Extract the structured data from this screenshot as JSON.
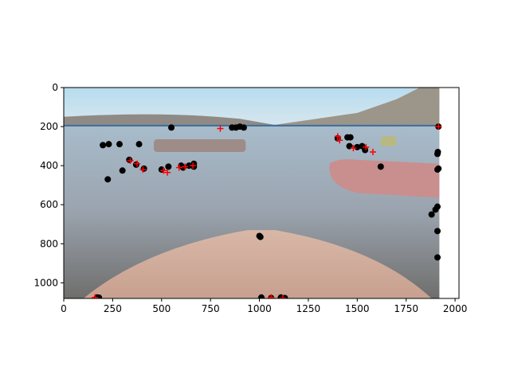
{
  "chart_data": {
    "type": "scatter",
    "title": "",
    "xlabel": "",
    "ylabel": "",
    "xlim": [
      0,
      2020
    ],
    "ylim": [
      1080,
      0
    ],
    "y_inverted": true,
    "grid": false,
    "background": "image",
    "image_extent": {
      "x": [
        0,
        1920
      ],
      "y": [
        1080,
        0
      ]
    },
    "xticks": [
      0,
      250,
      500,
      750,
      1000,
      1250,
      1500,
      1750,
      2000
    ],
    "xtick_labels": [
      "0",
      "250",
      "500",
      "750",
      "1000",
      "1250",
      "1500",
      "1750",
      "2000"
    ],
    "yticks": [
      0,
      200,
      400,
      600,
      800,
      1000
    ],
    "ytick_labels": [
      "0",
      "200",
      "400",
      "600",
      "800",
      "1000"
    ],
    "horizon_line": {
      "y": 195,
      "color": "#3a6e9c"
    },
    "series": [
      {
        "marker": "circle",
        "color": "#000000",
        "points": [
          [
            200,
            295
          ],
          [
            230,
            290
          ],
          [
            285,
            290
          ],
          [
            385,
            290
          ],
          [
            225,
            470
          ],
          [
            300,
            425
          ],
          [
            335,
            370
          ],
          [
            370,
            395
          ],
          [
            410,
            415
          ],
          [
            500,
            420
          ],
          [
            535,
            405
          ],
          [
            550,
            205
          ],
          [
            600,
            400
          ],
          [
            610,
            410
          ],
          [
            640,
            400
          ],
          [
            665,
            405
          ],
          [
            665,
            390
          ],
          [
            860,
            205
          ],
          [
            880,
            205
          ],
          [
            900,
            200
          ],
          [
            920,
            205
          ],
          [
            1000,
            760
          ],
          [
            1005,
            765
          ],
          [
            1010,
            1075
          ],
          [
            1060,
            1078
          ],
          [
            1110,
            1075
          ],
          [
            1130,
            1078
          ],
          [
            1400,
            260
          ],
          [
            1450,
            255
          ],
          [
            1465,
            255
          ],
          [
            1460,
            300
          ],
          [
            1500,
            305
          ],
          [
            1540,
            320
          ],
          [
            1525,
            300
          ],
          [
            1620,
            405
          ],
          [
            1880,
            650
          ],
          [
            1910,
            610
          ],
          [
            1900,
            625
          ],
          [
            1915,
            200
          ],
          [
            1910,
            340
          ],
          [
            1912,
            330
          ],
          [
            1910,
            420
          ],
          [
            1915,
            415
          ],
          [
            1910,
            735
          ],
          [
            1910,
            870
          ],
          [
            170,
            1075
          ],
          [
            180,
            1076
          ]
        ]
      },
      {
        "marker": "plus",
        "color": "#ff0000",
        "points": [
          [
            160,
            1075
          ],
          [
            340,
            375
          ],
          [
            375,
            390
          ],
          [
            405,
            420
          ],
          [
            510,
            425
          ],
          [
            530,
            435
          ],
          [
            590,
            410
          ],
          [
            620,
            405
          ],
          [
            660,
            400
          ],
          [
            800,
            210
          ],
          [
            1400,
            250
          ],
          [
            1410,
            270
          ],
          [
            1480,
            310
          ],
          [
            1545,
            305
          ],
          [
            1580,
            330
          ],
          [
            1915,
            200
          ],
          [
            1060,
            1075
          ],
          [
            1120,
            1078
          ]
        ]
      }
    ]
  }
}
